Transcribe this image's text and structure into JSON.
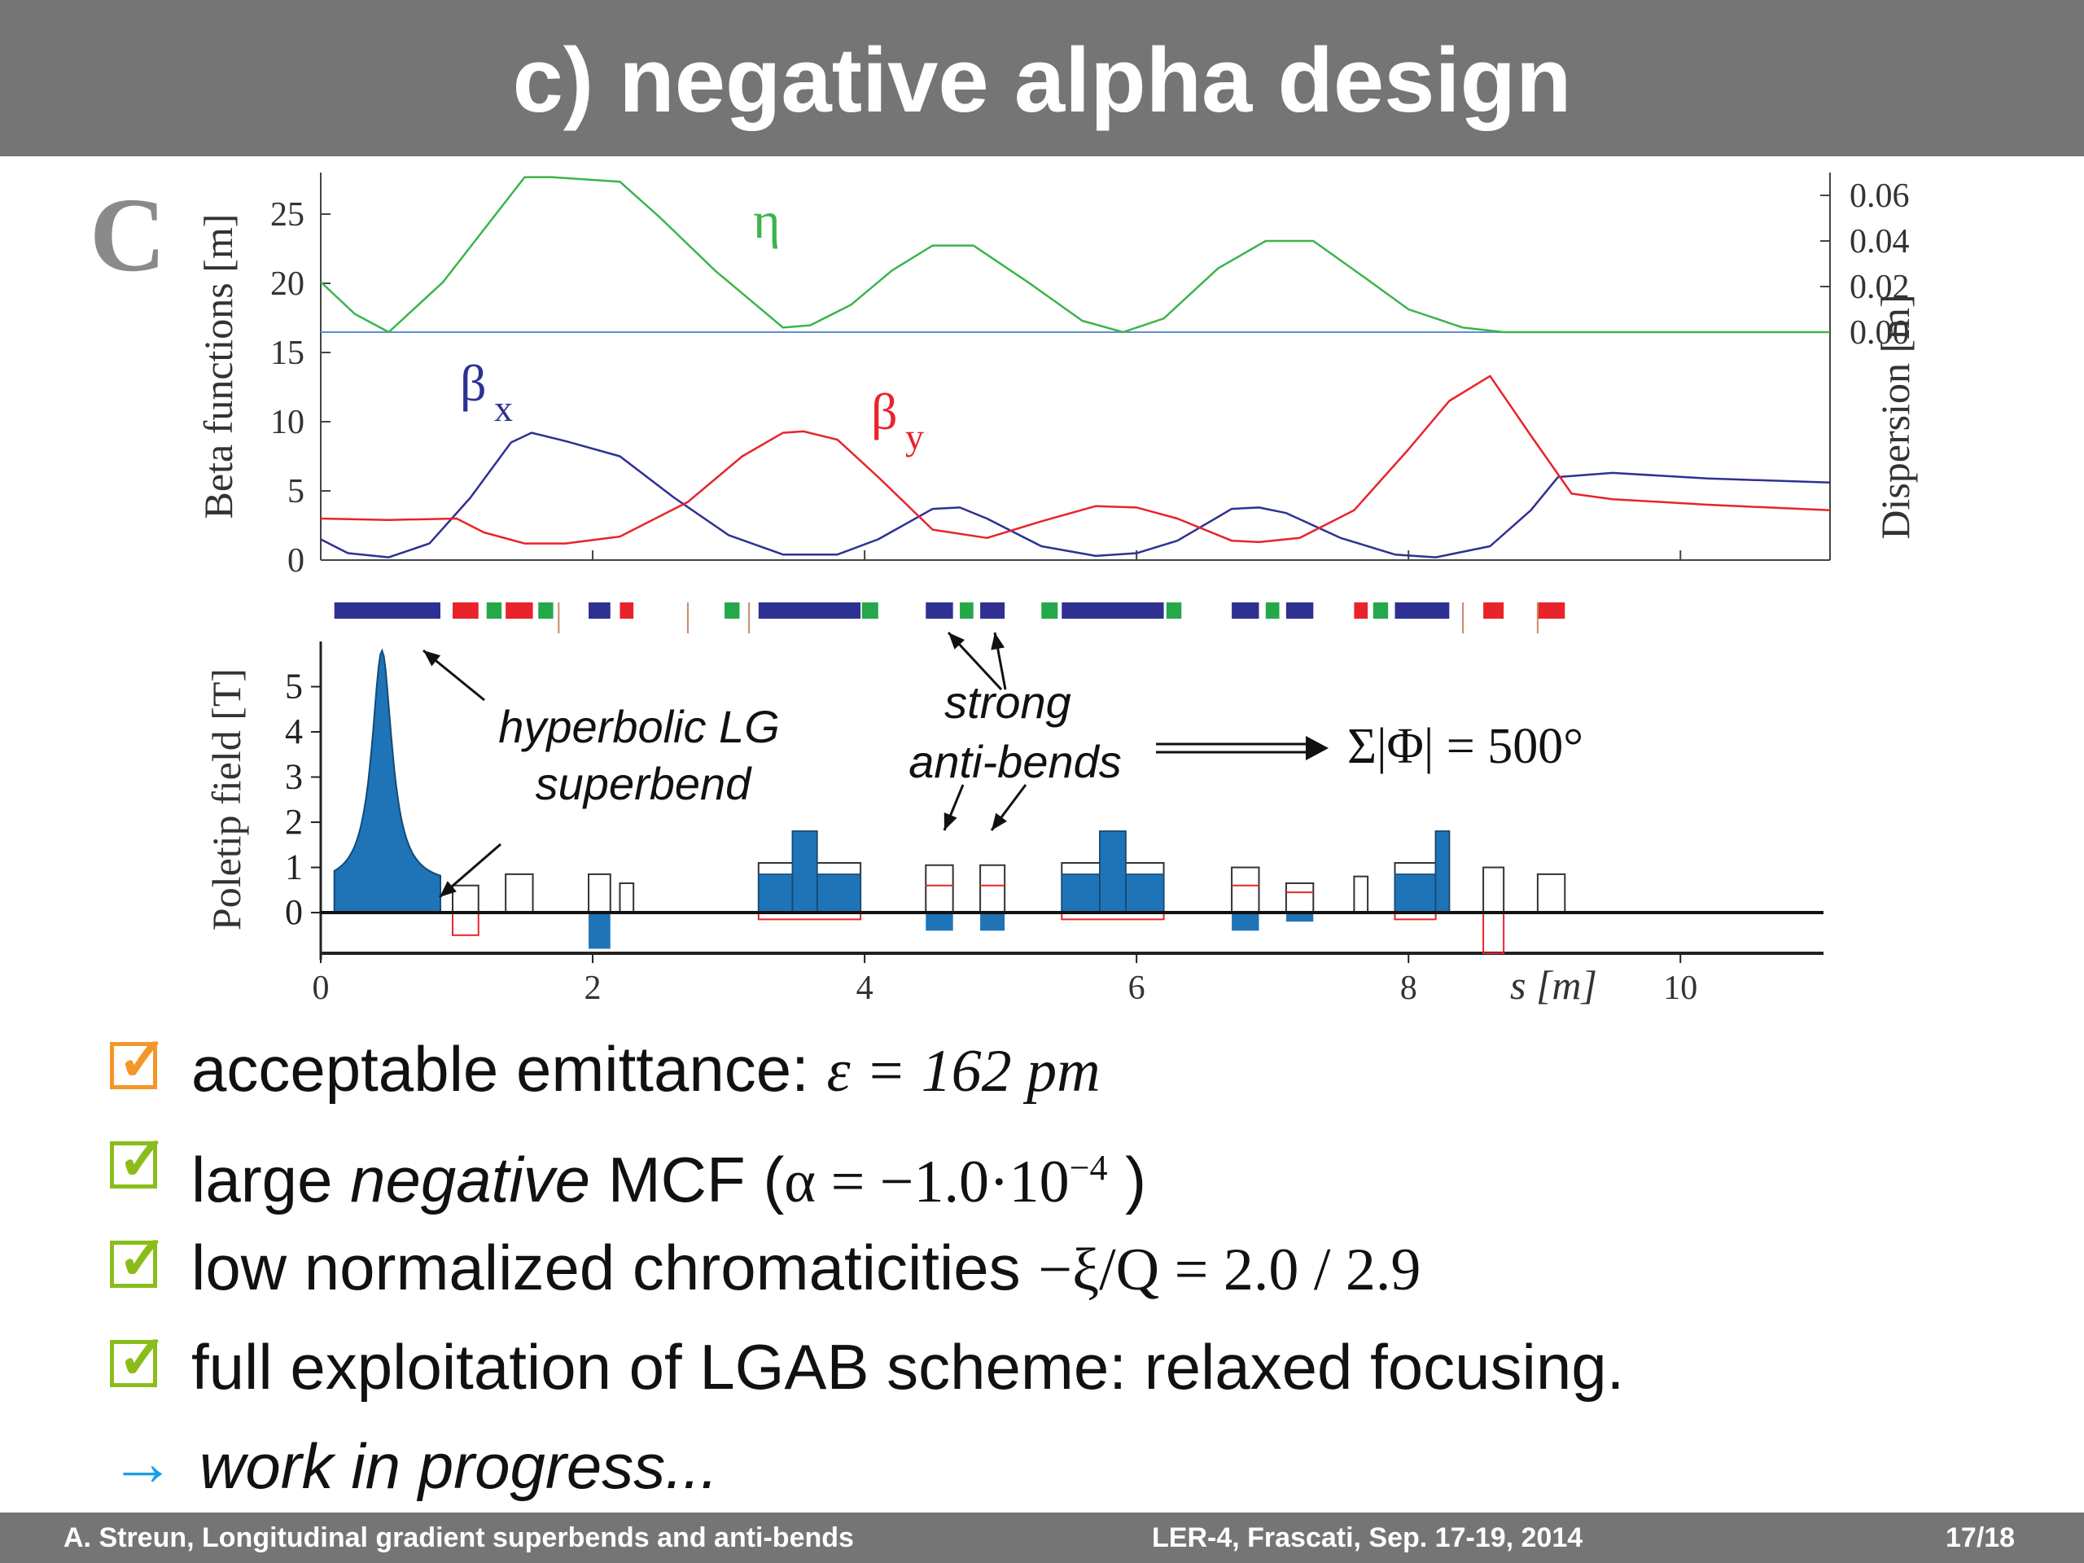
{
  "slide": {
    "title": "c) negative alpha design"
  },
  "colors": {
    "eta": "#3cb44b",
    "beta_x": "#2e3192",
    "beta_y": "#e8242a",
    "dipole": "#2e3192",
    "quad_red": "#e8242a",
    "sext_green": "#25a84a",
    "field_fill": "#1f74b8",
    "title_bar": "#757575"
  },
  "chart_data": [
    {
      "type": "line",
      "panel_label": "C",
      "ylabel": "Beta functions [m]",
      "y2label": "Dispersion  [m]",
      "xlim": [
        0,
        11.1
      ],
      "ylim": [
        0,
        28
      ],
      "y2lim": [
        -0.1,
        0.07
      ],
      "yticks": [
        0,
        5,
        10,
        15,
        20,
        25
      ],
      "y2ticks": [
        "0.06",
        "0.04",
        "0.02",
        "0.00"
      ],
      "y2tick_values": [
        0.06,
        0.04,
        0.02,
        0.0
      ],
      "series": [
        {
          "name": "η",
          "axis": "y2",
          "x": [
            0,
            0.25,
            0.5,
            0.9,
            1.2,
            1.5,
            1.7,
            2.2,
            2.5,
            2.9,
            3.4,
            3.6,
            3.9,
            4.2,
            4.5,
            4.8,
            5.2,
            5.6,
            5.9,
            6.2,
            6.6,
            6.95,
            7.3,
            7.7,
            8.0,
            8.4,
            8.7,
            11.1
          ],
          "y": [
            0.022,
            0.008,
            0.0,
            0.022,
            0.045,
            0.068,
            0.068,
            0.066,
            0.05,
            0.027,
            0.002,
            0.003,
            0.012,
            0.027,
            0.038,
            0.038,
            0.022,
            0.005,
            0.0,
            0.006,
            0.028,
            0.04,
            0.04,
            0.023,
            0.01,
            0.002,
            0.0,
            0.0
          ]
        },
        {
          "name": "βx",
          "axis": "y",
          "x": [
            0,
            0.2,
            0.5,
            0.8,
            1.1,
            1.4,
            1.55,
            1.8,
            2.2,
            2.6,
            3.0,
            3.4,
            3.8,
            4.1,
            4.5,
            4.7,
            4.9,
            5.3,
            5.7,
            6.0,
            6.3,
            6.7,
            6.9,
            7.1,
            7.5,
            7.9,
            8.2,
            8.6,
            8.9,
            9.1,
            9.5,
            10.2,
            11.1
          ],
          "y": [
            1.5,
            0.5,
            0.2,
            1.2,
            4.5,
            8.5,
            9.2,
            8.6,
            7.5,
            4.5,
            1.8,
            0.4,
            0.4,
            1.5,
            3.7,
            3.8,
            3.0,
            1.0,
            0.3,
            0.5,
            1.4,
            3.7,
            3.8,
            3.4,
            1.6,
            0.4,
            0.2,
            1.0,
            3.6,
            6.0,
            6.3,
            5.9,
            5.6
          ]
        },
        {
          "name": "βy",
          "axis": "y",
          "x": [
            0,
            0.5,
            1.0,
            1.2,
            1.5,
            1.8,
            2.2,
            2.7,
            3.1,
            3.4,
            3.55,
            3.8,
            4.1,
            4.5,
            4.9,
            5.3,
            5.7,
            6.0,
            6.3,
            6.7,
            6.9,
            7.2,
            7.6,
            8.0,
            8.3,
            8.6,
            8.9,
            9.2,
            9.5,
            10.2,
            11.1
          ],
          "y": [
            3.0,
            2.9,
            3.0,
            2.0,
            1.2,
            1.2,
            1.7,
            4.2,
            7.5,
            9.2,
            9.3,
            8.7,
            6.0,
            2.2,
            1.6,
            2.8,
            3.9,
            3.8,
            3.0,
            1.4,
            1.3,
            1.6,
            3.6,
            8.0,
            11.5,
            13.3,
            9.0,
            4.8,
            4.4,
            4.0,
            3.6
          ]
        }
      ],
      "series_labels": {
        "eta": "η",
        "beta_x": "β",
        "beta_x_sub": "x",
        "beta_y": "β",
        "beta_y_sub": "y"
      }
    },
    {
      "type": "bar",
      "ylabel": "Poletip field [T]",
      "xlabel": "s [m]",
      "xlim": [
        0,
        11.1
      ],
      "ylim": [
        -0.9,
        6
      ],
      "xticks": [
        0,
        2,
        4,
        6,
        8,
        10
      ],
      "yticks": [
        0,
        1,
        2,
        3,
        4,
        5
      ],
      "peak_field": 5.8,
      "magnets": [
        {
          "kind": "superbend",
          "x0": 0.1,
          "x1": 0.88,
          "y": 0.6
        },
        {
          "kind": "quad",
          "x0": 0.97,
          "x1": 1.16,
          "y": 0.6,
          "neg": -0.5,
          "fill": 0
        },
        {
          "kind": "quad",
          "x0": 1.36,
          "x1": 1.56,
          "y": 0.85,
          "fill": 0
        },
        {
          "kind": "bend",
          "x0": 1.97,
          "x1": 2.13,
          "y": 0.85,
          "fill": -0.8
        },
        {
          "kind": "quad",
          "x0": 2.2,
          "x1": 2.3,
          "y": 0.65,
          "fill": 0
        },
        {
          "kind": "bend",
          "x0": 3.22,
          "x1": 3.97,
          "y": 1.1,
          "fill": 0.85,
          "neg": -0.15
        },
        {
          "kind": "bend",
          "x0": 3.47,
          "x1": 3.65,
          "y": 1.8,
          "fill": 1.8
        },
        {
          "kind": "antibend",
          "x0": 4.45,
          "x1": 4.65,
          "y": 1.05,
          "fill": -0.4,
          "mark": 0.6
        },
        {
          "kind": "antibend",
          "x0": 4.85,
          "x1": 5.03,
          "y": 1.05,
          "fill": -0.4,
          "mark": 0.6
        },
        {
          "kind": "bend",
          "x0": 5.45,
          "x1": 6.2,
          "y": 1.1,
          "fill": 0.85,
          "neg": -0.15
        },
        {
          "kind": "bend",
          "x0": 5.73,
          "x1": 5.92,
          "y": 1.8,
          "fill": 1.8
        },
        {
          "kind": "antibend",
          "x0": 6.7,
          "x1": 6.9,
          "y": 1.0,
          "fill": -0.4,
          "mark": 0.6
        },
        {
          "kind": "antibend",
          "x0": 7.1,
          "x1": 7.3,
          "y": 0.65,
          "fill": -0.2,
          "mark": 0.45
        },
        {
          "kind": "quad",
          "x0": 7.6,
          "x1": 7.7,
          "y": 0.8,
          "fill": 0
        },
        {
          "kind": "bend",
          "x0": 7.9,
          "x1": 8.2,
          "y": 1.1,
          "fill": 0.85,
          "neg": -0.15
        },
        {
          "kind": "bend",
          "x0": 8.2,
          "x1": 8.3,
          "y": 1.8,
          "fill": 1.8
        },
        {
          "kind": "quad",
          "x0": 8.55,
          "x1": 8.7,
          "y": 1.0,
          "neg": -0.9,
          "fill": 0
        },
        {
          "kind": "quad",
          "x0": 8.95,
          "x1": 9.15,
          "y": 0.85,
          "fill": 0
        }
      ],
      "lattice_strip": [
        {
          "c": "dipole",
          "x0": 0.1,
          "x1": 0.88
        },
        {
          "c": "quad_red",
          "x0": 0.97,
          "x1": 1.16
        },
        {
          "c": "sext_green",
          "x0": 1.22,
          "x1": 1.33
        },
        {
          "c": "quad_red",
          "x0": 1.36,
          "x1": 1.56
        },
        {
          "c": "sext_green",
          "x0": 1.6,
          "x1": 1.71
        },
        {
          "c": "dipole",
          "x0": 1.97,
          "x1": 2.13
        },
        {
          "c": "quad_red",
          "x0": 2.2,
          "x1": 2.3
        },
        {
          "c": "sext_green",
          "x0": 2.97,
          "x1": 3.08
        },
        {
          "c": "dipole",
          "x0": 3.22,
          "x1": 3.97
        },
        {
          "c": "sext_green",
          "x0": 3.98,
          "x1": 4.1
        },
        {
          "c": "dipole",
          "x0": 4.45,
          "x1": 4.65
        },
        {
          "c": "sext_green",
          "x0": 4.7,
          "x1": 4.8
        },
        {
          "c": "dipole",
          "x0": 4.85,
          "x1": 5.03
        },
        {
          "c": "sext_green",
          "x0": 5.3,
          "x1": 5.42
        },
        {
          "c": "dipole",
          "x0": 5.45,
          "x1": 6.2
        },
        {
          "c": "sext_green",
          "x0": 6.22,
          "x1": 6.33
        },
        {
          "c": "dipole",
          "x0": 6.7,
          "x1": 6.9
        },
        {
          "c": "sext_green",
          "x0": 6.95,
          "x1": 7.05
        },
        {
          "c": "dipole",
          "x0": 7.1,
          "x1": 7.3
        },
        {
          "c": "quad_red",
          "x0": 7.6,
          "x1": 7.7
        },
        {
          "c": "sext_green",
          "x0": 7.74,
          "x1": 7.85
        },
        {
          "c": "dipole",
          "x0": 7.9,
          "x1": 8.3
        },
        {
          "c": "quad_red",
          "x0": 8.55,
          "x1": 8.7
        },
        {
          "c": "quad_red",
          "x0": 8.95,
          "x1": 9.15
        }
      ],
      "annotations": {
        "superbend_line1": "hyperbolic LG",
        "superbend_line2": "superbend",
        "antibend_line1": "strong",
        "antibend_line2": "anti-bends",
        "phase_sum": "Σ|Φ| = 500°"
      }
    }
  ],
  "bullets": [
    {
      "check": "orange",
      "text": "acceptable emittance: ",
      "math": "ε = 162 pm"
    },
    {
      "check": "green",
      "pre": "large ",
      "em": "negative",
      "post": " MCF (",
      "math": "α = −1.0·10",
      "sup": "−4",
      "tail": " )"
    },
    {
      "check": "green",
      "text": "low normalized chromaticities ",
      "math": "−ξ/Q = 2.0 / 2.9"
    },
    {
      "check": "green",
      "text": "full exploitation of LGAB scheme: relaxed focusing."
    },
    {
      "arrow": "→",
      "text": "work in progress..."
    }
  ],
  "footer": {
    "left": "A. Streun, Longitudinal gradient superbends and anti-bends",
    "center": "LER-4, Frascati,  Sep. 17-19, 2014",
    "right": "17/18"
  }
}
